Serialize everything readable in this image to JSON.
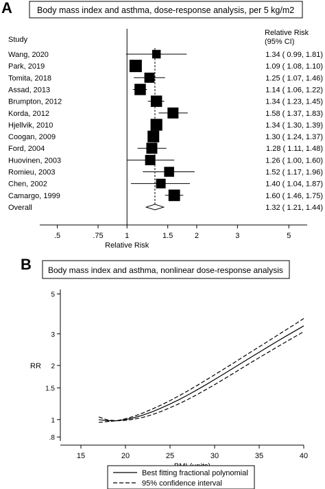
{
  "panel_a": {
    "letter": "A",
    "title": "Body mass index and asthma, dose-response analysis, per 5 kg/m2",
    "study_header": "Study",
    "rr_header_line1": "Relative Risk",
    "rr_header_line2": "(95% CI)"
  },
  "panel_b": {
    "letter": "B",
    "title": "Body mass index and asthma, nonlinear dose-response analysis"
  },
  "chart_data": [
    {
      "type": "forest",
      "title": "Body mass index and asthma, dose-response analysis, per 5 kg/m2",
      "xlabel": "Relative Risk",
      "xscale": "log",
      "xlim": [
        0.42,
        6.0
      ],
      "xticks": [
        0.5,
        0.75,
        1,
        1.5,
        2,
        3,
        5
      ],
      "xtick_labels": [
        ".5",
        ".75",
        "1",
        "1.5",
        "2",
        "3",
        "5"
      ],
      "reference_line": 1,
      "overall_line": 1.32,
      "studies": [
        {
          "label": "Wang, 2020",
          "rr": 1.34,
          "lo": 0.99,
          "hi": 1.81,
          "ci_text": "1.34 ( 0.99, 1.81)",
          "weight": 0.45
        },
        {
          "label": "Park, 2019",
          "rr": 1.09,
          "lo": 1.08,
          "hi": 1.1,
          "ci_text": "1.09 ( 1.08, 1.10)",
          "weight": 1.0
        },
        {
          "label": "Tomita, 2018",
          "rr": 1.25,
          "lo": 1.07,
          "hi": 1.46,
          "ci_text": "1.25 ( 1.07, 1.46)",
          "weight": 0.68
        },
        {
          "label": "Assad, 2013",
          "rr": 1.14,
          "lo": 1.06,
          "hi": 1.22,
          "ci_text": "1.14 ( 1.06, 1.22)",
          "weight": 0.85
        },
        {
          "label": "Brumpton, 2012",
          "rr": 1.34,
          "lo": 1.23,
          "hi": 1.45,
          "ci_text": "1.34 ( 1.23, 1.45)",
          "weight": 0.85
        },
        {
          "label": "Korda, 2012",
          "rr": 1.58,
          "lo": 1.37,
          "hi": 1.83,
          "ci_text": "1.58 ( 1.37, 1.83)",
          "weight": 0.8
        },
        {
          "label": "Hjellvik, 2010",
          "rr": 1.34,
          "lo": 1.3,
          "hi": 1.39,
          "ci_text": "1.34 ( 1.30, 1.39)",
          "weight": 0.92
        },
        {
          "label": "Coogan, 2009",
          "rr": 1.3,
          "lo": 1.24,
          "hi": 1.37,
          "ci_text": "1.30 ( 1.24, 1.37)",
          "weight": 0.9
        },
        {
          "label": "Ford, 2004",
          "rr": 1.28,
          "lo": 1.11,
          "hi": 1.48,
          "ci_text": "1.28 ( 1.11, 1.48)",
          "weight": 0.8
        },
        {
          "label": "Huovinen, 2003",
          "rr": 1.26,
          "lo": 1.0,
          "hi": 1.6,
          "ci_text": "1.26 ( 1.00, 1.60)",
          "weight": 0.7
        },
        {
          "label": "Romieu, 2003",
          "rr": 1.52,
          "lo": 1.17,
          "hi": 1.96,
          "ci_text": "1.52 ( 1.17, 1.96)",
          "weight": 0.65
        },
        {
          "label": "Chen, 2002",
          "rr": 1.4,
          "lo": 1.04,
          "hi": 1.87,
          "ci_text": "1.40 ( 1.04, 1.87)",
          "weight": 0.6
        },
        {
          "label": "Camargo, 1999",
          "rr": 1.6,
          "lo": 1.46,
          "hi": 1.75,
          "ci_text": "1.60 ( 1.46, 1.75)",
          "weight": 0.88
        }
      ],
      "overall": {
        "label": "Overall",
        "rr": 1.32,
        "lo": 1.21,
        "hi": 1.44,
        "ci_text": "1.32 ( 1.21, 1.44)"
      }
    },
    {
      "type": "line",
      "title": "Body mass index and asthma, nonlinear dose-response analysis",
      "xlabel": "BMI (units)",
      "ylabel": "RR",
      "yscale": "log",
      "xlim": [
        15,
        40
      ],
      "ylim": [
        0.76,
        5.3
      ],
      "xticks": [
        15,
        20,
        25,
        30,
        35,
        40
      ],
      "yticks": [
        0.8,
        1,
        1.5,
        2,
        3,
        5
      ],
      "ytick_labels": [
        ".8",
        "1",
        "1.5",
        "2",
        "3",
        "5"
      ],
      "x": [
        17,
        18,
        19,
        20,
        21,
        22,
        23,
        24,
        25,
        26,
        27,
        28,
        29,
        30,
        31,
        32,
        33,
        34,
        35,
        36,
        37,
        38,
        39,
        40
      ],
      "series": [
        {
          "name": "Best fitting fractional polynomial",
          "style": "solid",
          "values": [
            1.0,
            0.985,
            0.985,
            1.0,
            1.025,
            1.06,
            1.105,
            1.16,
            1.22,
            1.29,
            1.37,
            1.46,
            1.56,
            1.67,
            1.79,
            1.92,
            2.06,
            2.21,
            2.37,
            2.54,
            2.72,
            2.91,
            3.11,
            3.32
          ]
        },
        {
          "name": "95% confidence interval",
          "style": "dashed",
          "bound": "upper",
          "values": [
            0.965,
            0.975,
            0.985,
            1.01,
            1.045,
            1.09,
            1.145,
            1.205,
            1.275,
            1.355,
            1.445,
            1.545,
            1.655,
            1.775,
            1.905,
            2.045,
            2.2,
            2.365,
            2.54,
            2.73,
            2.935,
            3.155,
            3.39,
            3.65
          ]
        },
        {
          "name": "95% confidence interval",
          "style": "dashed",
          "bound": "lower",
          "values": [
            1.035,
            0.995,
            0.985,
            0.99,
            1.005,
            1.03,
            1.065,
            1.11,
            1.165,
            1.225,
            1.295,
            1.375,
            1.465,
            1.565,
            1.675,
            1.795,
            1.925,
            2.065,
            2.21,
            2.365,
            2.53,
            2.705,
            2.89,
            3.085
          ]
        }
      ],
      "legend": [
        {
          "label": "Best fitting fractional polynomial",
          "style": "solid"
        },
        {
          "label": "95% confidence interval",
          "style": "dashed"
        }
      ],
      "legend_position": "bottom"
    }
  ]
}
